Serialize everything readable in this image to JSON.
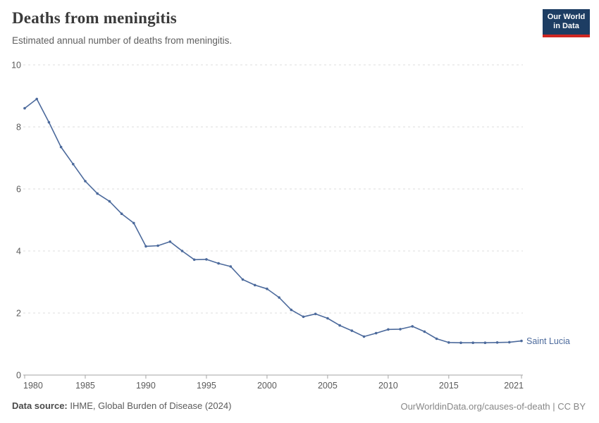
{
  "header": {
    "title": "Deaths from meningitis",
    "subtitle": "Estimated annual number of deaths from meningitis.",
    "logo_line1": "Our World",
    "logo_line2": "in Data"
  },
  "chart_data": {
    "type": "line",
    "title": "Deaths from meningitis",
    "subtitle": "Estimated annual number of deaths from meningitis.",
    "series": [
      {
        "name": "Saint Lucia",
        "color": "#4c6a9c",
        "x": [
          1980,
          1981,
          1982,
          1983,
          1984,
          1985,
          1986,
          1987,
          1988,
          1989,
          1990,
          1991,
          1992,
          1993,
          1994,
          1995,
          1996,
          1997,
          1998,
          1999,
          2000,
          2001,
          2002,
          2003,
          2004,
          2005,
          2006,
          2007,
          2008,
          2009,
          2010,
          2011,
          2012,
          2013,
          2014,
          2015,
          2016,
          2017,
          2018,
          2019,
          2020,
          2021
        ],
        "values": [
          8.6,
          8.9,
          8.15,
          7.35,
          6.8,
          6.25,
          5.85,
          5.6,
          5.2,
          4.9,
          4.15,
          4.17,
          4.3,
          4.0,
          3.72,
          3.73,
          3.6,
          3.5,
          3.08,
          2.9,
          2.78,
          2.5,
          2.1,
          1.88,
          1.97,
          1.83,
          1.6,
          1.43,
          1.24,
          1.35,
          1.47,
          1.48,
          1.57,
          1.4,
          1.17,
          1.05,
          1.04,
          1.04,
          1.04,
          1.05,
          1.06,
          1.1
        ]
      }
    ],
    "end_label": "Saint Lucia",
    "xlabel": "",
    "ylabel": "",
    "xlim": [
      1980,
      2021
    ],
    "ylim": [
      0,
      10
    ],
    "x_ticks": [
      1980,
      1985,
      1990,
      1995,
      2000,
      2005,
      2010,
      2015,
      2021
    ],
    "y_ticks": [
      0,
      2,
      4,
      6,
      8,
      10
    ],
    "grid": "horizontal-dashed",
    "legend_position": "line-end",
    "colors": {
      "line": "#4c6a9c",
      "grid": "#dddddd",
      "axis": "#a5a5a5",
      "tick_text": "#5b5b5b"
    }
  },
  "footer": {
    "source_label": "Data source:",
    "source_text": " IHME, Global Burden of Disease (2024)",
    "credit": "OurWorldinData.org/causes-of-death | CC BY"
  }
}
